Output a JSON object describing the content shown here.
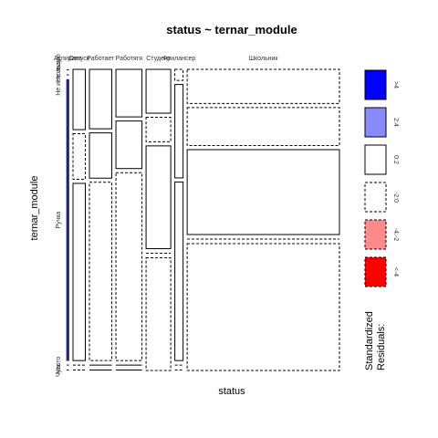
{
  "chart_data": {
    "type": "mosaic",
    "title": "status ~ ternar_module",
    "xlabel": "status",
    "ylabel": "ternar_module",
    "x_categories": [
      "Аспирант",
      "Отпуск",
      "Работает",
      "Работягя",
      "Студент",
      "Фрилансер",
      "Школьник"
    ],
    "y_categories": [
      "Не знаю",
      "Не использую",
      "Ручка",
      "Часто",
      "Чуть"
    ],
    "col_widths": [
      1.5,
      8.1,
      14.7,
      17.1,
      16.2,
      5.4,
      100
    ],
    "cells": [
      [
        0.3,
        0.4,
        99.0,
        0.3,
        0.3
      ],
      [
        21.3,
        16.1,
        62.6,
        0.3,
        0.3
      ],
      [
        21.0,
        16.0,
        63.0,
        0.3,
        0.3
      ],
      [
        16.8,
        16.8,
        66.4,
        0.3,
        0.3
      ],
      [
        15.4,
        8.6,
        36.1,
        0.3,
        39.6
      ],
      [
        3.9,
        33.0,
        63.1,
        0.3,
        0.3
      ],
      [
        12.0,
        13.4,
        29.9,
        0.3,
        44.7
      ]
    ],
    "cell_styles": [
      [
        "dashed",
        "dashed",
        "blue-line",
        "dashed",
        "dashed"
      ],
      [
        "solid",
        "dashed",
        "solid",
        "dashed",
        "dashed"
      ],
      [
        "solid",
        "solid",
        "dashed",
        "solid",
        "solid"
      ],
      [
        "solid",
        "solid",
        "dashed",
        "solid",
        "solid"
      ],
      [
        "solid",
        "dashed",
        "solid",
        "dashed",
        "dashed"
      ],
      [
        "dashed",
        "solid",
        "solid",
        "dashed",
        "dashed"
      ],
      [
        "dashed",
        "dashed",
        "solid",
        "dashed",
        "dashed"
      ]
    ],
    "legend": {
      "title": "Standardized Residuals:",
      "entries": [
        {
          "label": ">4",
          "fill": "#0000ff",
          "border": "solid"
        },
        {
          "label": "2:4",
          "fill": "#8a8aff",
          "border": "solid"
        },
        {
          "label": "0:2",
          "fill": "#ffffff",
          "border": "solid"
        },
        {
          "label": "-2:0",
          "fill": "#ffffff",
          "border": "dashed"
        },
        {
          "label": "-4:-2",
          "fill": "#ff8a8a",
          "border": "dashed"
        },
        {
          "label": "<-4",
          "fill": "#ff0000",
          "border": "dashed"
        }
      ]
    }
  }
}
